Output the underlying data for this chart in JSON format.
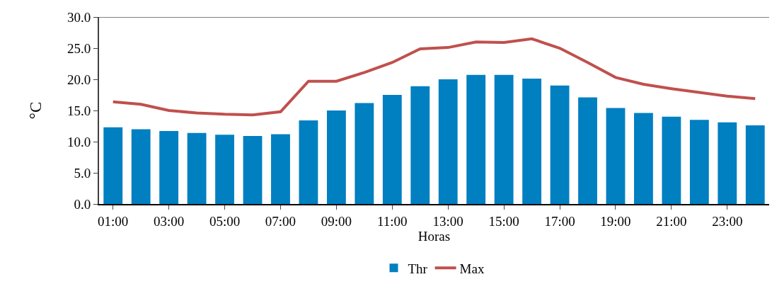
{
  "chart_data": {
    "type": "bar",
    "xlabel": "Horas",
    "ylabel": "°C",
    "categories": [
      "01:00",
      null,
      "03:00",
      null,
      "05:00",
      null,
      "07:00",
      null,
      "09:00",
      null,
      "11:00",
      null,
      "13:00",
      null,
      "15:00",
      null,
      "17:00",
      null,
      "19:00",
      null,
      "21:00",
      null,
      "23:00",
      null
    ],
    "series": [
      {
        "name": "Thr",
        "color": "#007fc1",
        "values": [
          12.3,
          12.0,
          11.7,
          11.4,
          11.1,
          10.9,
          11.2,
          13.4,
          15.0,
          16.2,
          17.5,
          18.9,
          20.0,
          20.7,
          20.7,
          20.1,
          19.0,
          17.1,
          15.4,
          14.6,
          14.0,
          13.5,
          13.1,
          12.6
        ]
      },
      {
        "name": "Max",
        "type": "line",
        "color": "#c0504d",
        "values": [
          16.4,
          16.0,
          15.0,
          14.6,
          14.4,
          14.3,
          14.8,
          19.7,
          19.7,
          21.1,
          22.7,
          24.9,
          25.1,
          26.0,
          25.9,
          26.5,
          25.0,
          22.7,
          20.3,
          19.2,
          18.5,
          17.9,
          17.3,
          16.9
        ]
      }
    ],
    "ylim": [
      0,
      30
    ],
    "yticks": [
      {
        "value": 0,
        "label": "0.0"
      },
      {
        "value": 5,
        "label": "5.0"
      },
      {
        "value": 10,
        "label": "10.0"
      },
      {
        "value": 15,
        "label": "15.0"
      },
      {
        "value": 20,
        "label": "20.0"
      },
      {
        "value": 25,
        "label": "25.0"
      },
      {
        "value": 30,
        "label": "30.0"
      }
    ],
    "legend": "bottom",
    "line_style": "solid",
    "marker": "none"
  }
}
